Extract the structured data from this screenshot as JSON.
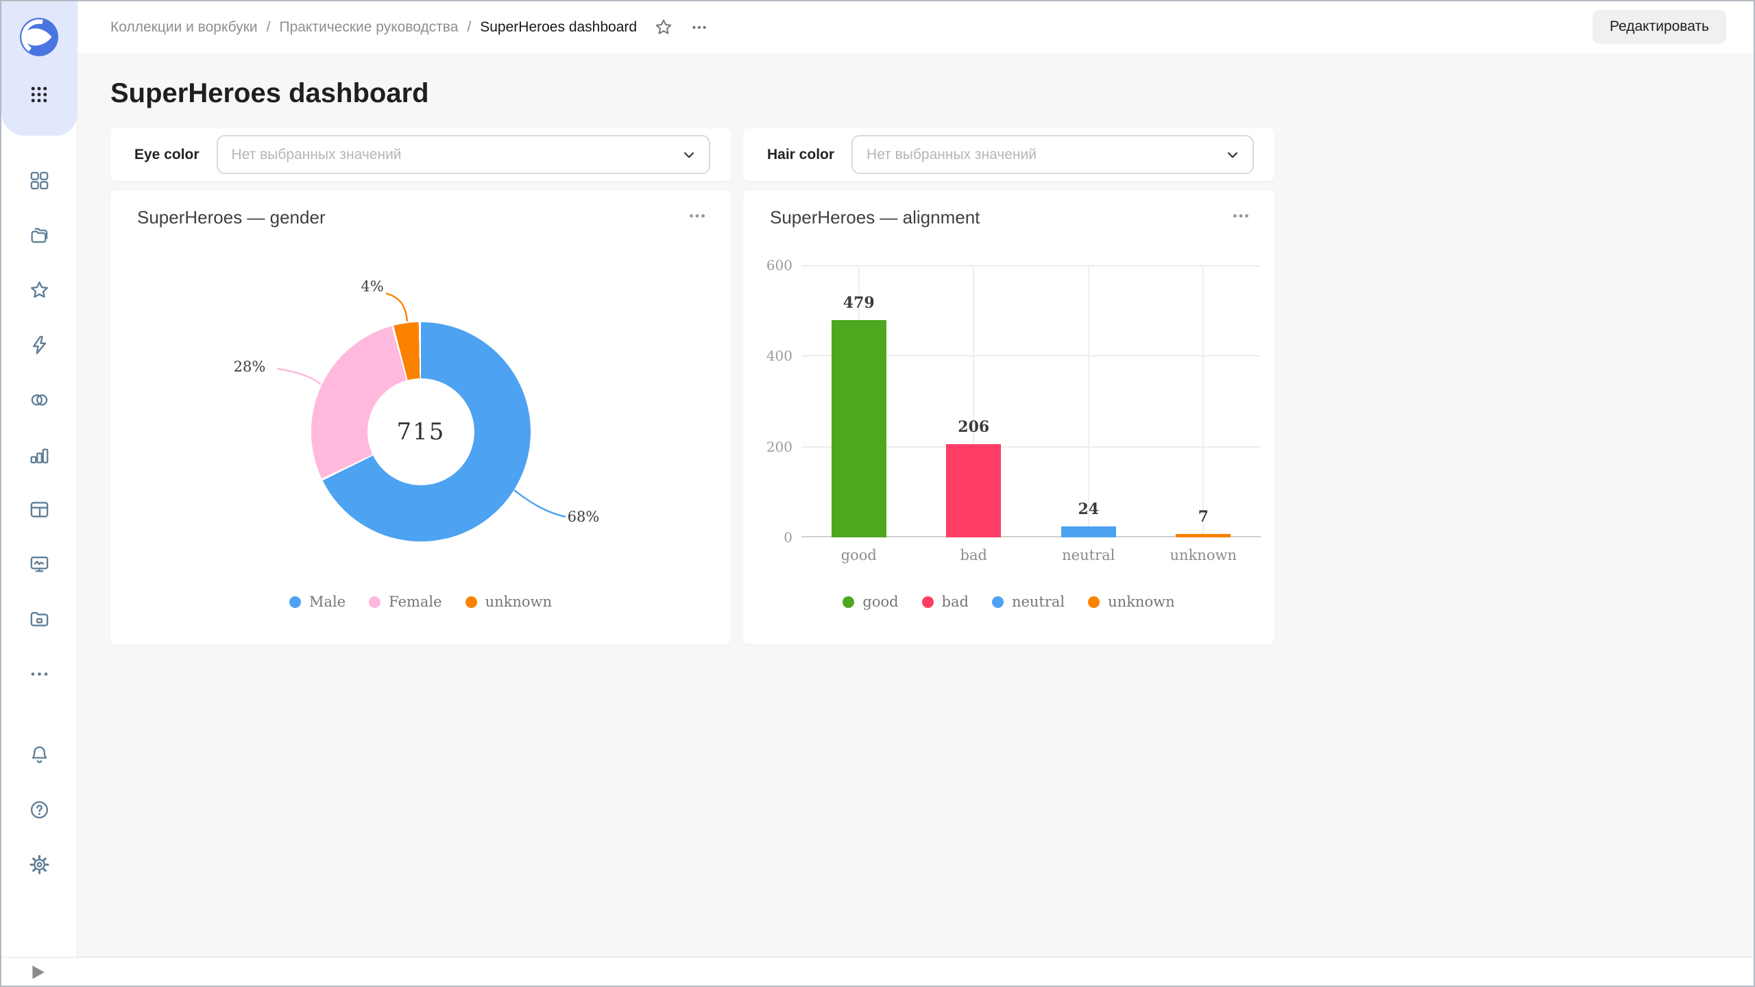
{
  "topbar": {
    "breadcrumbs": [
      "Коллекции и воркбуки",
      "Практические руководства",
      "SuperHeroes dashboard"
    ],
    "separator": "/",
    "edit_button_label": "Редактировать"
  },
  "page_title": "SuperHeroes dashboard",
  "filters": [
    {
      "label": "Eye color",
      "placeholder": "Нет выбранных значений"
    },
    {
      "label": "Hair color",
      "placeholder": "Нет выбранных значений"
    }
  ],
  "sidebar": {
    "icons": [
      "datalens-logo",
      "apps-grid",
      "navigation-grid",
      "collections-folders",
      "favorites-star",
      "connections-lightning",
      "datasets-venn",
      "charts-bar",
      "dashboards-table",
      "monitoring-screen",
      "storage-folder",
      "more-ellipsis"
    ],
    "footer_icons": [
      "notifications-bell",
      "help-question",
      "settings-gear",
      "expand-play"
    ]
  },
  "colors": {
    "logo_blue": "#4a74e0",
    "sidebar_icon": "#5e7d96",
    "page_background": "#f7f7f8"
  },
  "chart_data": [
    {
      "type": "pie",
      "subtype": "donut",
      "title": "SuperHeroes — gender",
      "center_total": "715",
      "value_suffix": "%",
      "series": [
        {
          "name": "Male",
          "value": 68,
          "color": "#4DA2F1"
        },
        {
          "name": "Female",
          "value": 28,
          "color": "#FFB9DD"
        },
        {
          "name": "unknown",
          "value": 4,
          "color": "#FB8100"
        }
      ],
      "legend_position": "bottom"
    },
    {
      "type": "bar",
      "title": "SuperHeroes — alignment",
      "categories": [
        "good",
        "bad",
        "neutral",
        "unknown"
      ],
      "values": [
        479,
        206,
        24,
        7
      ],
      "colors": [
        "#4EA71F",
        "#FF3D64",
        "#4DA2F1",
        "#FB8100"
      ],
      "ylim": [
        0,
        600
      ],
      "yticks": [
        600,
        400,
        200,
        0
      ],
      "grid": true,
      "legend": [
        "good",
        "bad",
        "neutral",
        "unknown"
      ],
      "legend_position": "bottom"
    }
  ]
}
